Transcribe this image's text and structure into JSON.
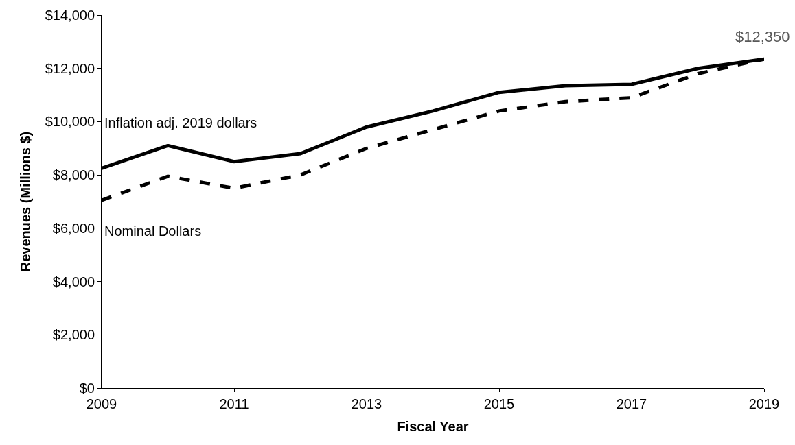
{
  "chart_data": {
    "type": "line",
    "xlabel": "Fiscal Year",
    "ylabel": "Revenues (Millions $)",
    "x": [
      2009,
      2010,
      2011,
      2012,
      2013,
      2014,
      2015,
      2016,
      2017,
      2018,
      2019
    ],
    "series": [
      {
        "name": "Inflation adj. 2019 dollars",
        "color": "#000000",
        "line_style": "solid",
        "values": [
          8250,
          9100,
          8500,
          8800,
          9800,
          10400,
          11100,
          11350,
          11400,
          12000,
          12350
        ]
      },
      {
        "name": "Nominal Dollars",
        "color": "#000000",
        "line_style": "dashed",
        "values": [
          7050,
          7950,
          7500,
          8000,
          9000,
          9700,
          10400,
          10750,
          10900,
          11800,
          12350
        ]
      }
    ],
    "annotations": [
      {
        "text": "$12,350",
        "x": 2019,
        "y": 12350
      }
    ],
    "xlim": [
      2009,
      2019
    ],
    "xticks": [
      2009,
      2011,
      2013,
      2015,
      2017,
      2019
    ],
    "ylim": [
      0,
      14000
    ],
    "yticks": [
      {
        "value": 0,
        "label": "$0"
      },
      {
        "value": 2000,
        "label": "$2,000"
      },
      {
        "value": 4000,
        "label": "$4,000"
      },
      {
        "value": 6000,
        "label": "$6,000"
      },
      {
        "value": 8000,
        "label": "$8,000"
      },
      {
        "value": 10000,
        "label": "$10,000"
      },
      {
        "value": 12000,
        "label": "$12,000"
      },
      {
        "value": 14000,
        "label": "$14,000"
      }
    ],
    "legend": false,
    "marker": "none"
  }
}
